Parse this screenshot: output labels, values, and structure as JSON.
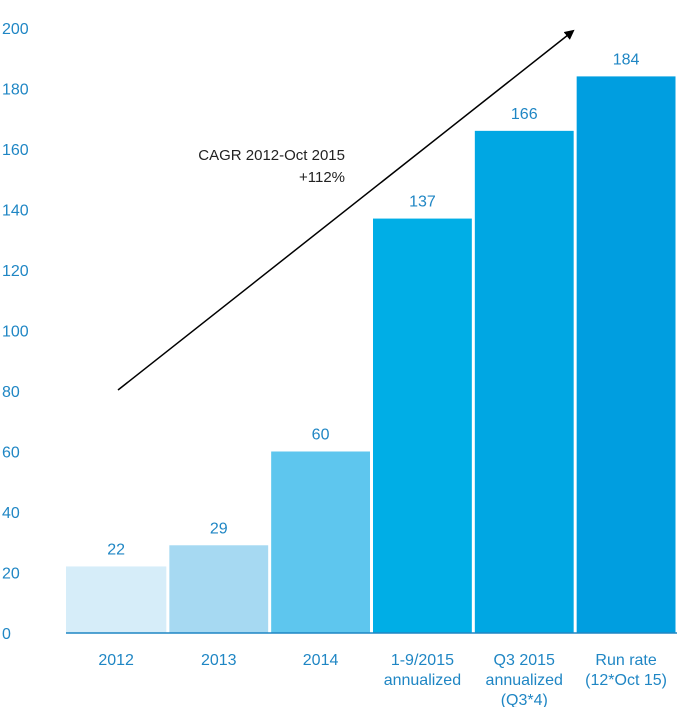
{
  "chart_data": {
    "type": "bar",
    "categories": [
      [
        "2012"
      ],
      [
        "2013"
      ],
      [
        "2014"
      ],
      [
        "1-9/2015",
        "annualized"
      ],
      [
        "Q3 2015",
        "annualized",
        "(Q3*4)"
      ],
      [
        "Run rate",
        "(12*Oct 15)"
      ]
    ],
    "values": [
      22,
      29,
      60,
      137,
      166,
      184
    ],
    "value_labels": [
      "22",
      "29",
      "60",
      "137",
      "166",
      "184"
    ],
    "bar_colors": [
      "#d6edf9",
      "#a6d9f2",
      "#5ec6ee",
      "#00aee6",
      "#00a7e3",
      "#009ee0"
    ],
    "ylim": [
      0,
      200
    ],
    "yticks": [
      0,
      20,
      40,
      60,
      80,
      100,
      120,
      140,
      160,
      180,
      200
    ],
    "grid": false,
    "annotation": {
      "line1": "CAGR 2012-Oct 2015",
      "line2": "+112%"
    },
    "colors": {
      "axis_text": "#1f86c4",
      "axis_line": "#1f86c4",
      "arrow": "#000000"
    }
  }
}
